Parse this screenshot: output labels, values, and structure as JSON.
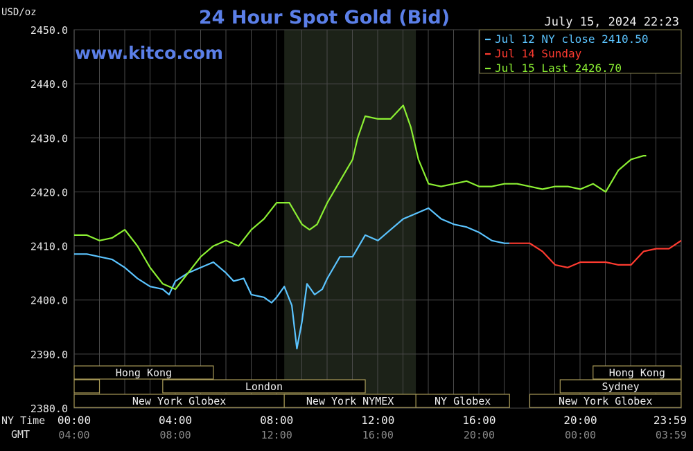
{
  "header": {
    "unit": "USD/oz",
    "title": "24 Hour Spot Gold (Bid)",
    "datetime": "July 15, 2024 22:23",
    "website": "www.kitco.com"
  },
  "axis": {
    "ny_time_label": "NY Time",
    "gmt_label": "GMT"
  },
  "sessions": {
    "row1": [
      {
        "label": "Hong Kong",
        "start": 0,
        "end": 5.5
      },
      {
        "label": "Hong Kong",
        "start": 20.5,
        "end": 23.98
      }
    ],
    "row2": [
      {
        "label": "",
        "start": 0,
        "end": 1
      },
      {
        "label": "London",
        "start": 3.5,
        "end": 11.5
      },
      {
        "label": "Sydney",
        "start": 19.2,
        "end": 23.98
      }
    ],
    "row3": [
      {
        "label": "New York Globex",
        "start": 0,
        "end": 8.3
      },
      {
        "label": "New York NYMEX",
        "start": 8.3,
        "end": 13.5
      },
      {
        "label": "NY Globex",
        "start": 13.5,
        "end": 17.2
      },
      {
        "label": "New York Globex",
        "start": 18,
        "end": 23.98
      }
    ]
  },
  "chart_data": {
    "type": "line",
    "title": "24 Hour Spot Gold (Bid)",
    "ylabel": "USD/oz",
    "ylim": [
      2380,
      2450
    ],
    "xlim": [
      0,
      23.983
    ],
    "grid": true,
    "legend_position": "top-right",
    "shaded_band": {
      "start": 8.3,
      "end": 13.5
    },
    "x_ticks": [
      {
        "x": 0,
        "ny": "00:00",
        "gmt": "04:00"
      },
      {
        "x": 4,
        "ny": "04:00",
        "gmt": "08:00"
      },
      {
        "x": 8,
        "ny": "08:00",
        "gmt": "12:00"
      },
      {
        "x": 12,
        "ny": "12:00",
        "gmt": "16:00"
      },
      {
        "x": 16,
        "ny": "16:00",
        "gmt": "20:00"
      },
      {
        "x": 20,
        "ny": "20:00",
        "gmt": "00:00"
      },
      {
        "x": 23.983,
        "ny": "23:59",
        "gmt": "03:59"
      }
    ],
    "y_ticks": [
      2380.0,
      2390.0,
      2400.0,
      2410.0,
      2420.0,
      2430.0,
      2440.0,
      2450.0
    ],
    "y_tick_labels": [
      "2380.0",
      "2390.0",
      "2400.0",
      "2410.0",
      "2420.0",
      "2430.0",
      "2440.0",
      "2450.0"
    ],
    "series": [
      {
        "name": "Jul 12 NY close 2410.50",
        "color": "#5bc4ff",
        "x": [
          0,
          0.5,
          1,
          1.5,
          2,
          2.5,
          3,
          3.5,
          3.75,
          4,
          4.5,
          5,
          5.5,
          6,
          6.3,
          6.7,
          7,
          7.5,
          7.8,
          8,
          8.3,
          8.6,
          8.8,
          9,
          9.2,
          9.5,
          9.8,
          10,
          10.5,
          11,
          11.5,
          12,
          12.5,
          13,
          13.5,
          14,
          14.5,
          15,
          15.5,
          16,
          16.5,
          17,
          17.2
        ],
        "values": [
          2408.5,
          2408.5,
          2408.0,
          2407.5,
          2406.0,
          2404.0,
          2402.5,
          2402.0,
          2401.0,
          2403.5,
          2405.0,
          2406.0,
          2407.0,
          2405.0,
          2403.5,
          2404.0,
          2401.0,
          2400.5,
          2399.5,
          2400.5,
          2402.5,
          2399.0,
          2391.0,
          2396.0,
          2403.0,
          2401.0,
          2402.0,
          2404.0,
          2408.0,
          2408.0,
          2412.0,
          2411.0,
          2413.0,
          2415.0,
          2416.0,
          2417.0,
          2415.0,
          2414.0,
          2413.5,
          2412.5,
          2411.0,
          2410.5,
          2410.5
        ]
      },
      {
        "name": "Jul 14 Sunday",
        "color": "#ff3b30",
        "x": [
          17.2,
          18,
          18.5,
          19,
          19.5,
          20,
          20.5,
          21,
          21.5,
          22,
          22.5,
          23,
          23.5,
          23.98
        ],
        "values": [
          2410.5,
          2410.5,
          2409.0,
          2406.5,
          2406.0,
          2407.0,
          2407.0,
          2407.0,
          2406.5,
          2406.5,
          2409.0,
          2409.5,
          2409.5,
          2411.0
        ]
      },
      {
        "name": "Jul 15 Last 2426.70",
        "color": "#8cf033",
        "x": [
          0,
          0.5,
          1,
          1.5,
          2,
          2.5,
          3,
          3.5,
          4,
          4.5,
          5,
          5.5,
          6,
          6.5,
          7,
          7.5,
          8,
          8.5,
          9,
          9.3,
          9.6,
          10,
          10.5,
          11,
          11.2,
          11.5,
          12,
          12.5,
          13,
          13.3,
          13.6,
          14,
          14.5,
          15,
          15.5,
          16,
          16.5,
          17,
          17.5,
          18,
          18.5,
          19,
          19.5,
          20,
          20.5,
          21,
          21.5,
          22,
          22.5,
          22.6
        ],
        "values": [
          2412.0,
          2412.0,
          2411.0,
          2411.5,
          2413.0,
          2410.0,
          2406.0,
          2403.0,
          2402.0,
          2405.0,
          2408.0,
          2410.0,
          2411.0,
          2410.0,
          2413.0,
          2415.0,
          2418.0,
          2418.0,
          2414.0,
          2413.0,
          2414.0,
          2418.0,
          2422.0,
          2426.0,
          2430.0,
          2434.0,
          2433.5,
          2433.5,
          2436.0,
          2432.0,
          2426.0,
          2421.5,
          2421.0,
          2421.5,
          2422.0,
          2421.0,
          2421.0,
          2421.5,
          2421.5,
          2421.0,
          2420.5,
          2421.0,
          2421.0,
          2420.5,
          2421.5,
          2420.0,
          2424.0,
          2426.0,
          2426.7,
          2426.7
        ]
      }
    ]
  }
}
